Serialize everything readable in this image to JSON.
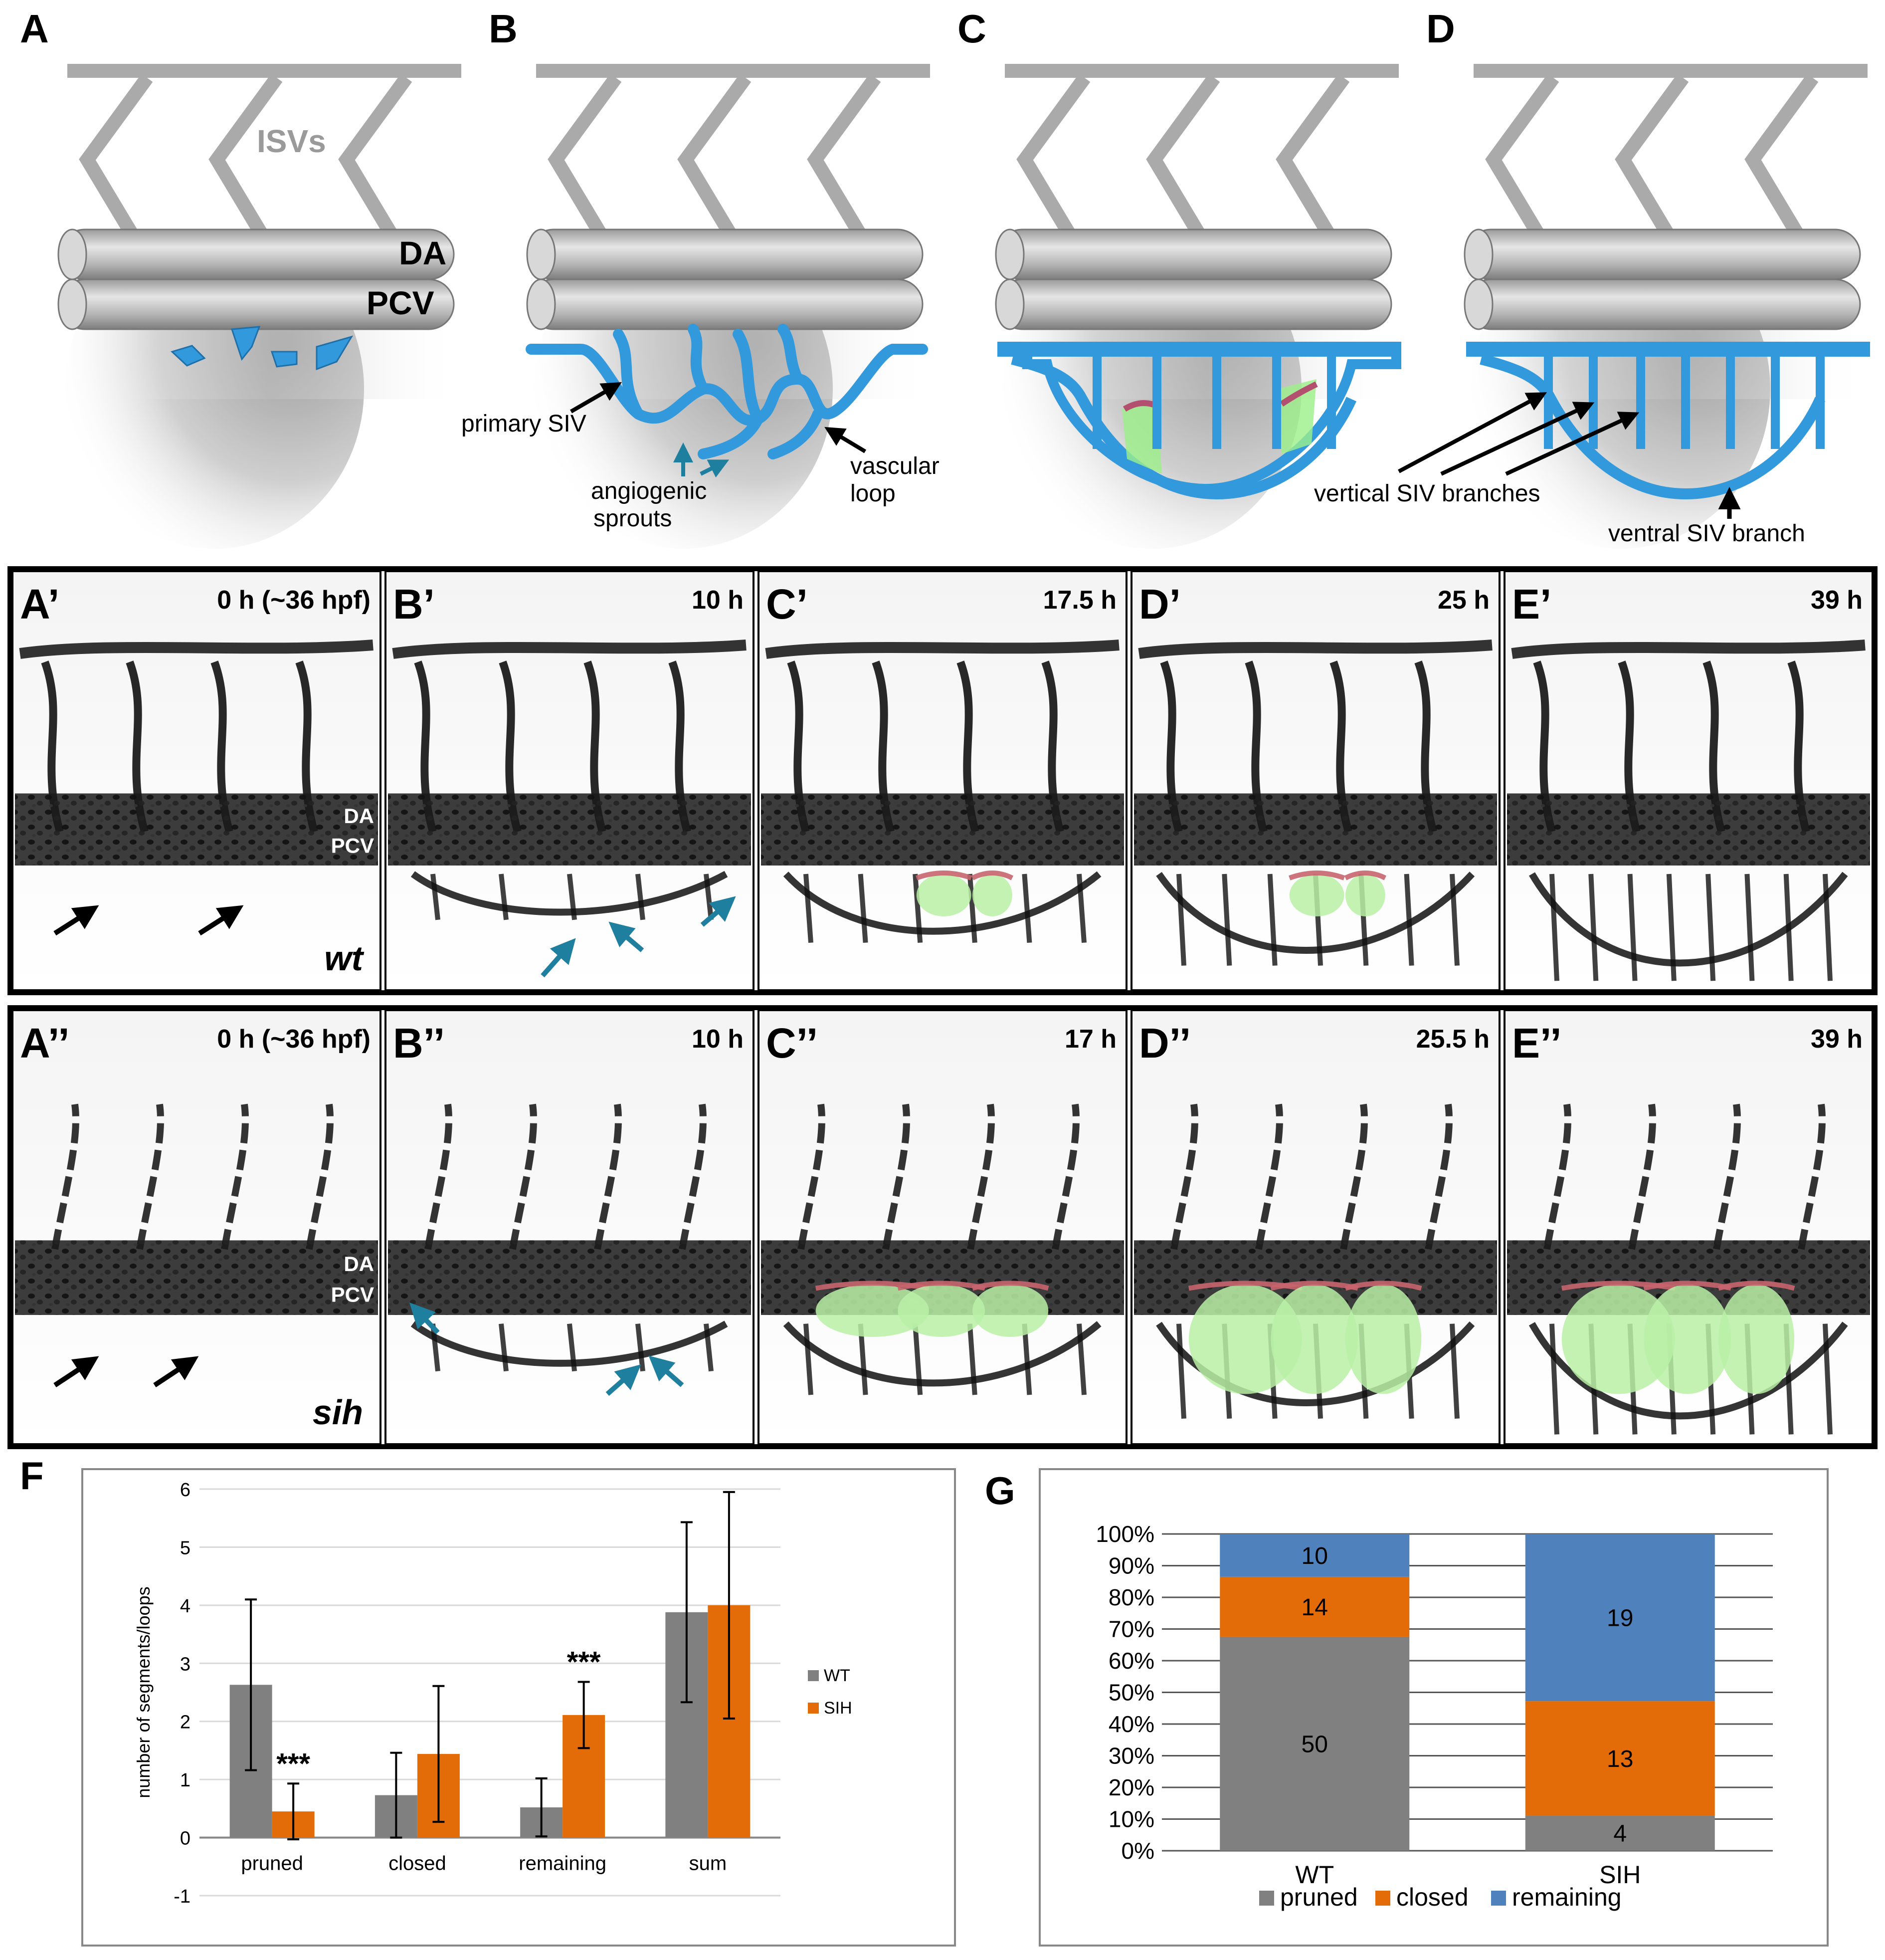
{
  "schematic": {
    "panel_labels": [
      "A",
      "B",
      "C",
      "D"
    ],
    "isv_label": "ISVs",
    "da_label": "DA",
    "pcv_label": "PCV",
    "b_primary_siv": "primary SIV",
    "b_sprouts_1": "angiogenic",
    "b_sprouts_2": "sprouts",
    "b_loop_1": "vascular",
    "b_loop_2": "loop",
    "d_vertical": "vertical SIV branches",
    "d_ventral": "ventral SIV branch",
    "colors": {
      "vessel": "#3399dd",
      "vessel_dark": "#1f6fa8",
      "tube": "#bdbdbd",
      "isv": "#aaaaaa"
    }
  },
  "micro_wt": {
    "panels": [
      {
        "label": "A’",
        "time": "0 h (~36 hpf)"
      },
      {
        "label": "B’",
        "time": "10 h"
      },
      {
        "label": "C’",
        "time": "17.5 h"
      },
      {
        "label": "D’",
        "time": "25 h"
      },
      {
        "label": "E’",
        "time": "39 h"
      }
    ],
    "genotype": "wt",
    "da_label": "DA",
    "pcv_label": "PCV"
  },
  "micro_sih": {
    "panels": [
      {
        "label": "A’’",
        "time": "0 h (~36 hpf)"
      },
      {
        "label": "B’’",
        "time": "10 h"
      },
      {
        "label": "C’’",
        "time": "17 h"
      },
      {
        "label": "D’’",
        "time": "25.5 h"
      },
      {
        "label": "E’’",
        "time": "39 h"
      }
    ],
    "genotype": "sih",
    "da_label": "DA",
    "pcv_label": "PCV"
  },
  "panel_f_label": "F",
  "panel_g_label": "G",
  "chart_data": [
    {
      "type": "bar",
      "title": "",
      "xlabel": "",
      "ylabel": "number of segments/loops",
      "categories": [
        "pruned",
        "closed",
        "remaining",
        "sum"
      ],
      "series": [
        {
          "name": "WT",
          "values": [
            2.63,
            0.73,
            0.52,
            3.88
          ],
          "error": [
            1.47,
            0.73,
            0.5,
            1.55
          ],
          "color": "#808080"
        },
        {
          "name": "SIH",
          "values": [
            0.45,
            1.44,
            2.11,
            4.0
          ],
          "error": [
            0.48,
            1.17,
            0.57,
            1.95
          ],
          "color": "#e36c09"
        }
      ],
      "ylim": [
        -1,
        6
      ],
      "yticks": [
        "-1",
        "0",
        "1",
        "2",
        "3",
        "4",
        "5",
        "6"
      ],
      "significance": [
        {
          "category": "pruned",
          "series": "SIH",
          "text": "***"
        },
        {
          "category": "remaining",
          "series": "SIH",
          "text": "***"
        }
      ],
      "legend_position": "right",
      "grid": true
    },
    {
      "type": "bar",
      "stacked": true,
      "percent": true,
      "title": "",
      "categories": [
        "WT",
        "SIH"
      ],
      "series": [
        {
          "name": "pruned",
          "values": [
            50,
            4
          ],
          "color": "#808080"
        },
        {
          "name": "closed",
          "values": [
            14,
            13
          ],
          "color": "#e36c09"
        },
        {
          "name": "remaining",
          "values": [
            10,
            19
          ],
          "color": "#4f81bd"
        }
      ],
      "yticks": [
        "0%",
        "10%",
        "20%",
        "30%",
        "40%",
        "50%",
        "60%",
        "70%",
        "80%",
        "90%",
        "100%"
      ],
      "ylim": [
        0,
        100
      ],
      "legend_position": "bottom",
      "grid": true
    }
  ]
}
